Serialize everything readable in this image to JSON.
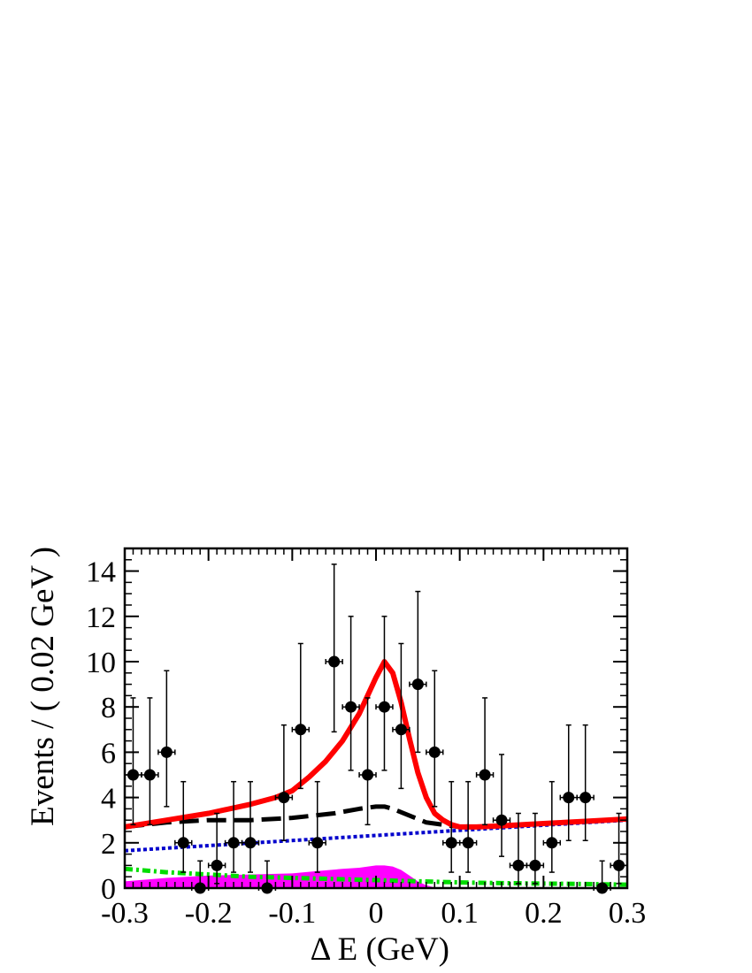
{
  "chart_data": {
    "type": "scatter",
    "xlabel": "Δ E (GeV)",
    "ylabel": "Events / ( 0.02 GeV )",
    "xlim": [
      -0.3,
      0.3
    ],
    "ylim": [
      0,
      15
    ],
    "xticks": [
      -0.3,
      -0.2,
      -0.1,
      0,
      0.1,
      0.2,
      0.3
    ],
    "xtick_labels": [
      "-0.3",
      "-0.2",
      "-0.1",
      "0",
      "0.1",
      "0.2",
      "0.3"
    ],
    "yticks": [
      0,
      2,
      4,
      6,
      8,
      10,
      12,
      14
    ],
    "ytick_labels": [
      "0",
      "2",
      "4",
      "6",
      "8",
      "10",
      "12",
      "14"
    ],
    "grid": false,
    "data_points": {
      "x": [
        -0.29,
        -0.27,
        -0.25,
        -0.23,
        -0.21,
        -0.19,
        -0.17,
        -0.15,
        -0.13,
        -0.11,
        -0.09,
        -0.07,
        -0.05,
        -0.03,
        -0.01,
        0.01,
        0.03,
        0.05,
        0.07,
        0.09,
        0.11,
        0.13,
        0.15,
        0.17,
        0.19,
        0.21,
        0.23,
        0.25,
        0.27,
        0.29
      ],
      "y": [
        5,
        5,
        6,
        2,
        0,
        1,
        2,
        2,
        0,
        4,
        7,
        2,
        10,
        8,
        5,
        8,
        7,
        9,
        6,
        2,
        2,
        5,
        3,
        1,
        1,
        2,
        4,
        4,
        0,
        1
      ],
      "x_error": 0.01,
      "y_error_low": [
        2.2,
        2.2,
        2.4,
        1.3,
        0,
        0.8,
        1.3,
        1.3,
        0,
        1.9,
        2.6,
        1.3,
        3.1,
        2.8,
        2.2,
        2.8,
        2.6,
        3.0,
        2.4,
        1.3,
        1.3,
        2.2,
        1.6,
        0.8,
        0.8,
        1.3,
        1.9,
        1.9,
        0,
        0.8
      ],
      "y_error_high": [
        3.4,
        3.4,
        3.6,
        2.7,
        1.2,
        2.3,
        2.7,
        2.7,
        1.2,
        3.2,
        3.8,
        2.7,
        4.3,
        4.0,
        3.4,
        4.0,
        3.8,
        4.1,
        3.6,
        2.7,
        2.7,
        3.4,
        2.9,
        2.3,
        2.3,
        2.7,
        3.2,
        3.2,
        1.2,
        2.3
      ]
    },
    "curves": {
      "total_fit": {
        "color": "#ff0000",
        "x": [
          -0.3,
          -0.25,
          -0.2,
          -0.15,
          -0.12,
          -0.1,
          -0.08,
          -0.06,
          -0.04,
          -0.02,
          0,
          0.01,
          0.02,
          0.03,
          0.04,
          0.05,
          0.06,
          0.07,
          0.08,
          0.09,
          0.1,
          0.12,
          0.15,
          0.2,
          0.25,
          0.3
        ],
        "y": [
          2.7,
          3.0,
          3.3,
          3.7,
          4.0,
          4.3,
          4.9,
          5.6,
          6.5,
          7.7,
          9.3,
          10.0,
          9.5,
          8.2,
          6.6,
          5.1,
          4.0,
          3.3,
          3.0,
          2.8,
          2.7,
          2.7,
          2.75,
          2.85,
          2.95,
          3.05
        ]
      },
      "dashed_component": {
        "color": "#000000",
        "x": [
          -0.3,
          -0.25,
          -0.2,
          -0.15,
          -0.1,
          -0.05,
          -0.02,
          0,
          0.01,
          0.02,
          0.04,
          0.06,
          0.08,
          0.1,
          0.12
        ],
        "y": [
          2.7,
          2.9,
          3.0,
          3.0,
          3.1,
          3.3,
          3.5,
          3.6,
          3.6,
          3.5,
          3.2,
          2.9,
          2.8,
          2.7,
          2.75
        ]
      },
      "dotted_component": {
        "color": "#0000cc",
        "x": [
          -0.3,
          0.3
        ],
        "y": [
          1.65,
          3.0
        ]
      },
      "dash_dot_component": {
        "color": "#00dd00",
        "x": [
          -0.3,
          -0.25,
          -0.2,
          -0.15,
          -0.1,
          -0.05,
          0,
          0.05,
          0.1,
          0.15,
          0.2,
          0.25,
          0.3
        ],
        "y": [
          0.85,
          0.7,
          0.6,
          0.5,
          0.45,
          0.4,
          0.35,
          0.3,
          0.25,
          0.22,
          0.2,
          0.18,
          0.15
        ]
      },
      "filled_component": {
        "color": "#ff00ff",
        "x": [
          -0.3,
          -0.25,
          -0.2,
          -0.15,
          -0.1,
          -0.07,
          -0.04,
          -0.02,
          0,
          0.01,
          0.02,
          0.03,
          0.04,
          0.05,
          0.06,
          0.07,
          0.08
        ],
        "y": [
          0.3,
          0.45,
          0.55,
          0.6,
          0.65,
          0.75,
          0.85,
          0.9,
          1.0,
          1.0,
          0.95,
          0.8,
          0.55,
          0.3,
          0.12,
          0.03,
          0.0
        ]
      }
    }
  }
}
